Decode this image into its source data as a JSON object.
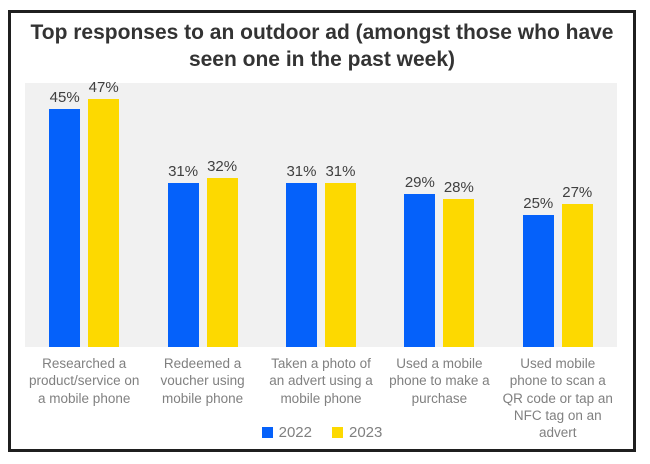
{
  "title": "Top responses to an outdoor ad (amongst those who have seen one in the past week)",
  "colors": {
    "bar_2022": "#0561FA",
    "bar_2023": "#FDD900",
    "plot_background": "#F1F1F1",
    "frame_border": "#1F1F1F",
    "title_text": "#333333",
    "value_label_text": "#404040",
    "muted_text": "#808080"
  },
  "chart_data": {
    "type": "bar",
    "title": "Top responses to an outdoor ad (amongst those who have seen one in the past week)",
    "categories": [
      "Researched a product/service on a mobile phone",
      "Redeemed a voucher using mobile phone",
      "Taken a photo of an advert using a mobile phone",
      "Used a mobile phone to make a purchase",
      "Used mobile phone to scan a QR code or tap an NFC tag on an advert"
    ],
    "series": [
      {
        "name": "2022",
        "color": "#0561FA",
        "values": [
          45,
          31,
          31,
          29,
          25
        ]
      },
      {
        "name": "2023",
        "color": "#FDD900",
        "values": [
          47,
          32,
          31,
          28,
          27
        ]
      }
    ],
    "value_suffix": "%",
    "ylim": [
      0,
      50
    ],
    "grid": false,
    "legend_position": "bottom",
    "xlabel": "",
    "ylabel": ""
  }
}
